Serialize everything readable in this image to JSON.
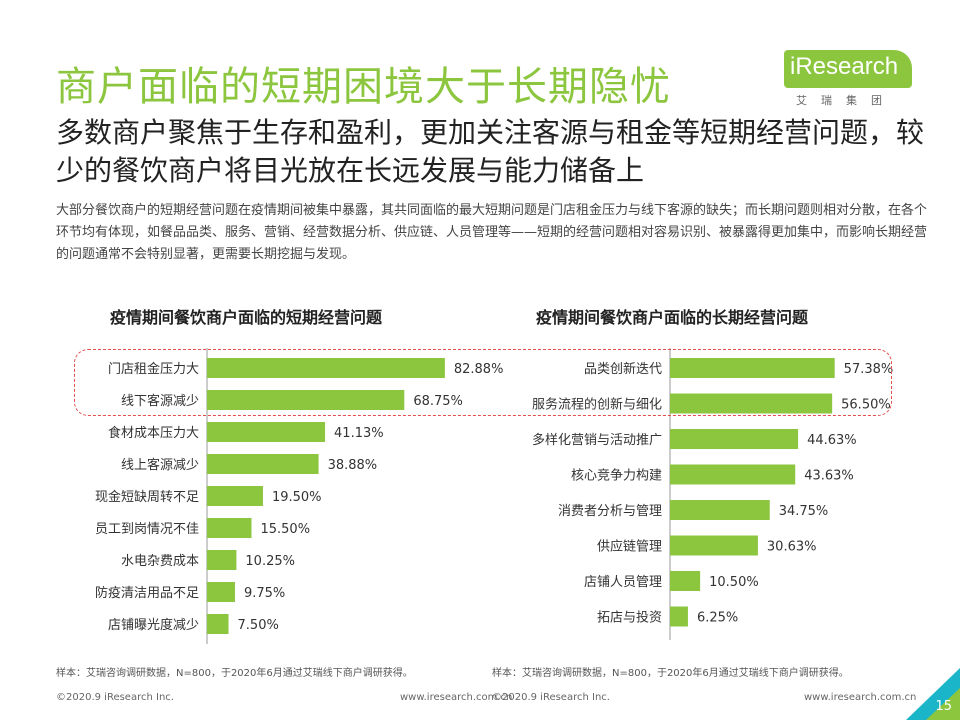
{
  "title": "商户面临的短期困境大于长期隐忧",
  "logo": {
    "name": "iResearch",
    "subtitle": "艾瑞集团"
  },
  "subtitle": "多数商户聚焦于生存和盈利，更加关注客源与租金等短期经营问题，较少的餐饮商户将目光放在长远发展与能力储备上",
  "description": "大部分餐饮商户的短期经营问题在疫情期间被集中暴露，其共同面临的最大短期问题是门店租金压力与线下客源的缺失；而长期问题则相对分散，在各个环节均有体现，如餐品品类、服务、营销、经营数据分析、供应链、人员管理等——短期的经营问题相对容易识别、被暴露得更加集中，而影响长期经营的问题通常不会特别显著，更需要长期挖掘与发现。",
  "colors": {
    "accent": "#8cc63f",
    "highlight": "#e34d4d",
    "corner": "#1bb5c9"
  },
  "chart_data": [
    {
      "type": "bar",
      "orientation": "horizontal",
      "title": "疫情期间餐饮商户面临的短期经营问题",
      "categories": [
        "门店租金压力大",
        "线下客源减少",
        "食材成本压力大",
        "线上客源减少",
        "现金短缺周转不足",
        "员工到岗情况不佳",
        "水电杂费成本",
        "防疫清洁用品不足",
        "店铺曝光度减少"
      ],
      "values": [
        82.88,
        68.75,
        41.13,
        38.88,
        19.5,
        15.5,
        10.25,
        9.75,
        7.5
      ],
      "value_labels": [
        "82.88%",
        "68.75%",
        "41.13%",
        "38.88%",
        "19.50%",
        "15.50%",
        "10.25%",
        "9.75%",
        "7.50%"
      ],
      "xlim": [
        0,
        100
      ],
      "highlighted": [
        "门店租金压力大",
        "线下客源减少"
      ]
    },
    {
      "type": "bar",
      "orientation": "horizontal",
      "title": "疫情期间餐饮商户面临的长期经营问题",
      "categories": [
        "品类创新迭代",
        "服务流程的创新与细化",
        "多样化营销与活动推广",
        "核心竞争力构建",
        "消费者分析与管理",
        "供应链管理",
        "店铺人员管理",
        "拓店与投资"
      ],
      "values": [
        57.38,
        56.5,
        44.63,
        43.63,
        34.75,
        30.63,
        10.5,
        6.25
      ],
      "value_labels": [
        "57.38%",
        "56.50%",
        "44.63%",
        "43.63%",
        "34.75%",
        "30.63%",
        "10.50%",
        "6.25%"
      ],
      "xlim": [
        0,
        100
      ],
      "highlighted": [
        "品类创新迭代",
        "服务流程的创新与细化"
      ]
    }
  ],
  "sources": [
    "样本：艾瑞咨询调研数据，N=800，于2020年6月通过艾瑞线下商户调研获得。",
    "样本：艾瑞咨询调研数据，N=800，于2020年6月通过艾瑞线下商户调研获得。"
  ],
  "footer": {
    "copyright": "©2020.9 iResearch Inc.",
    "website": "www.iresearch.com.cn"
  },
  "page_number": "15"
}
